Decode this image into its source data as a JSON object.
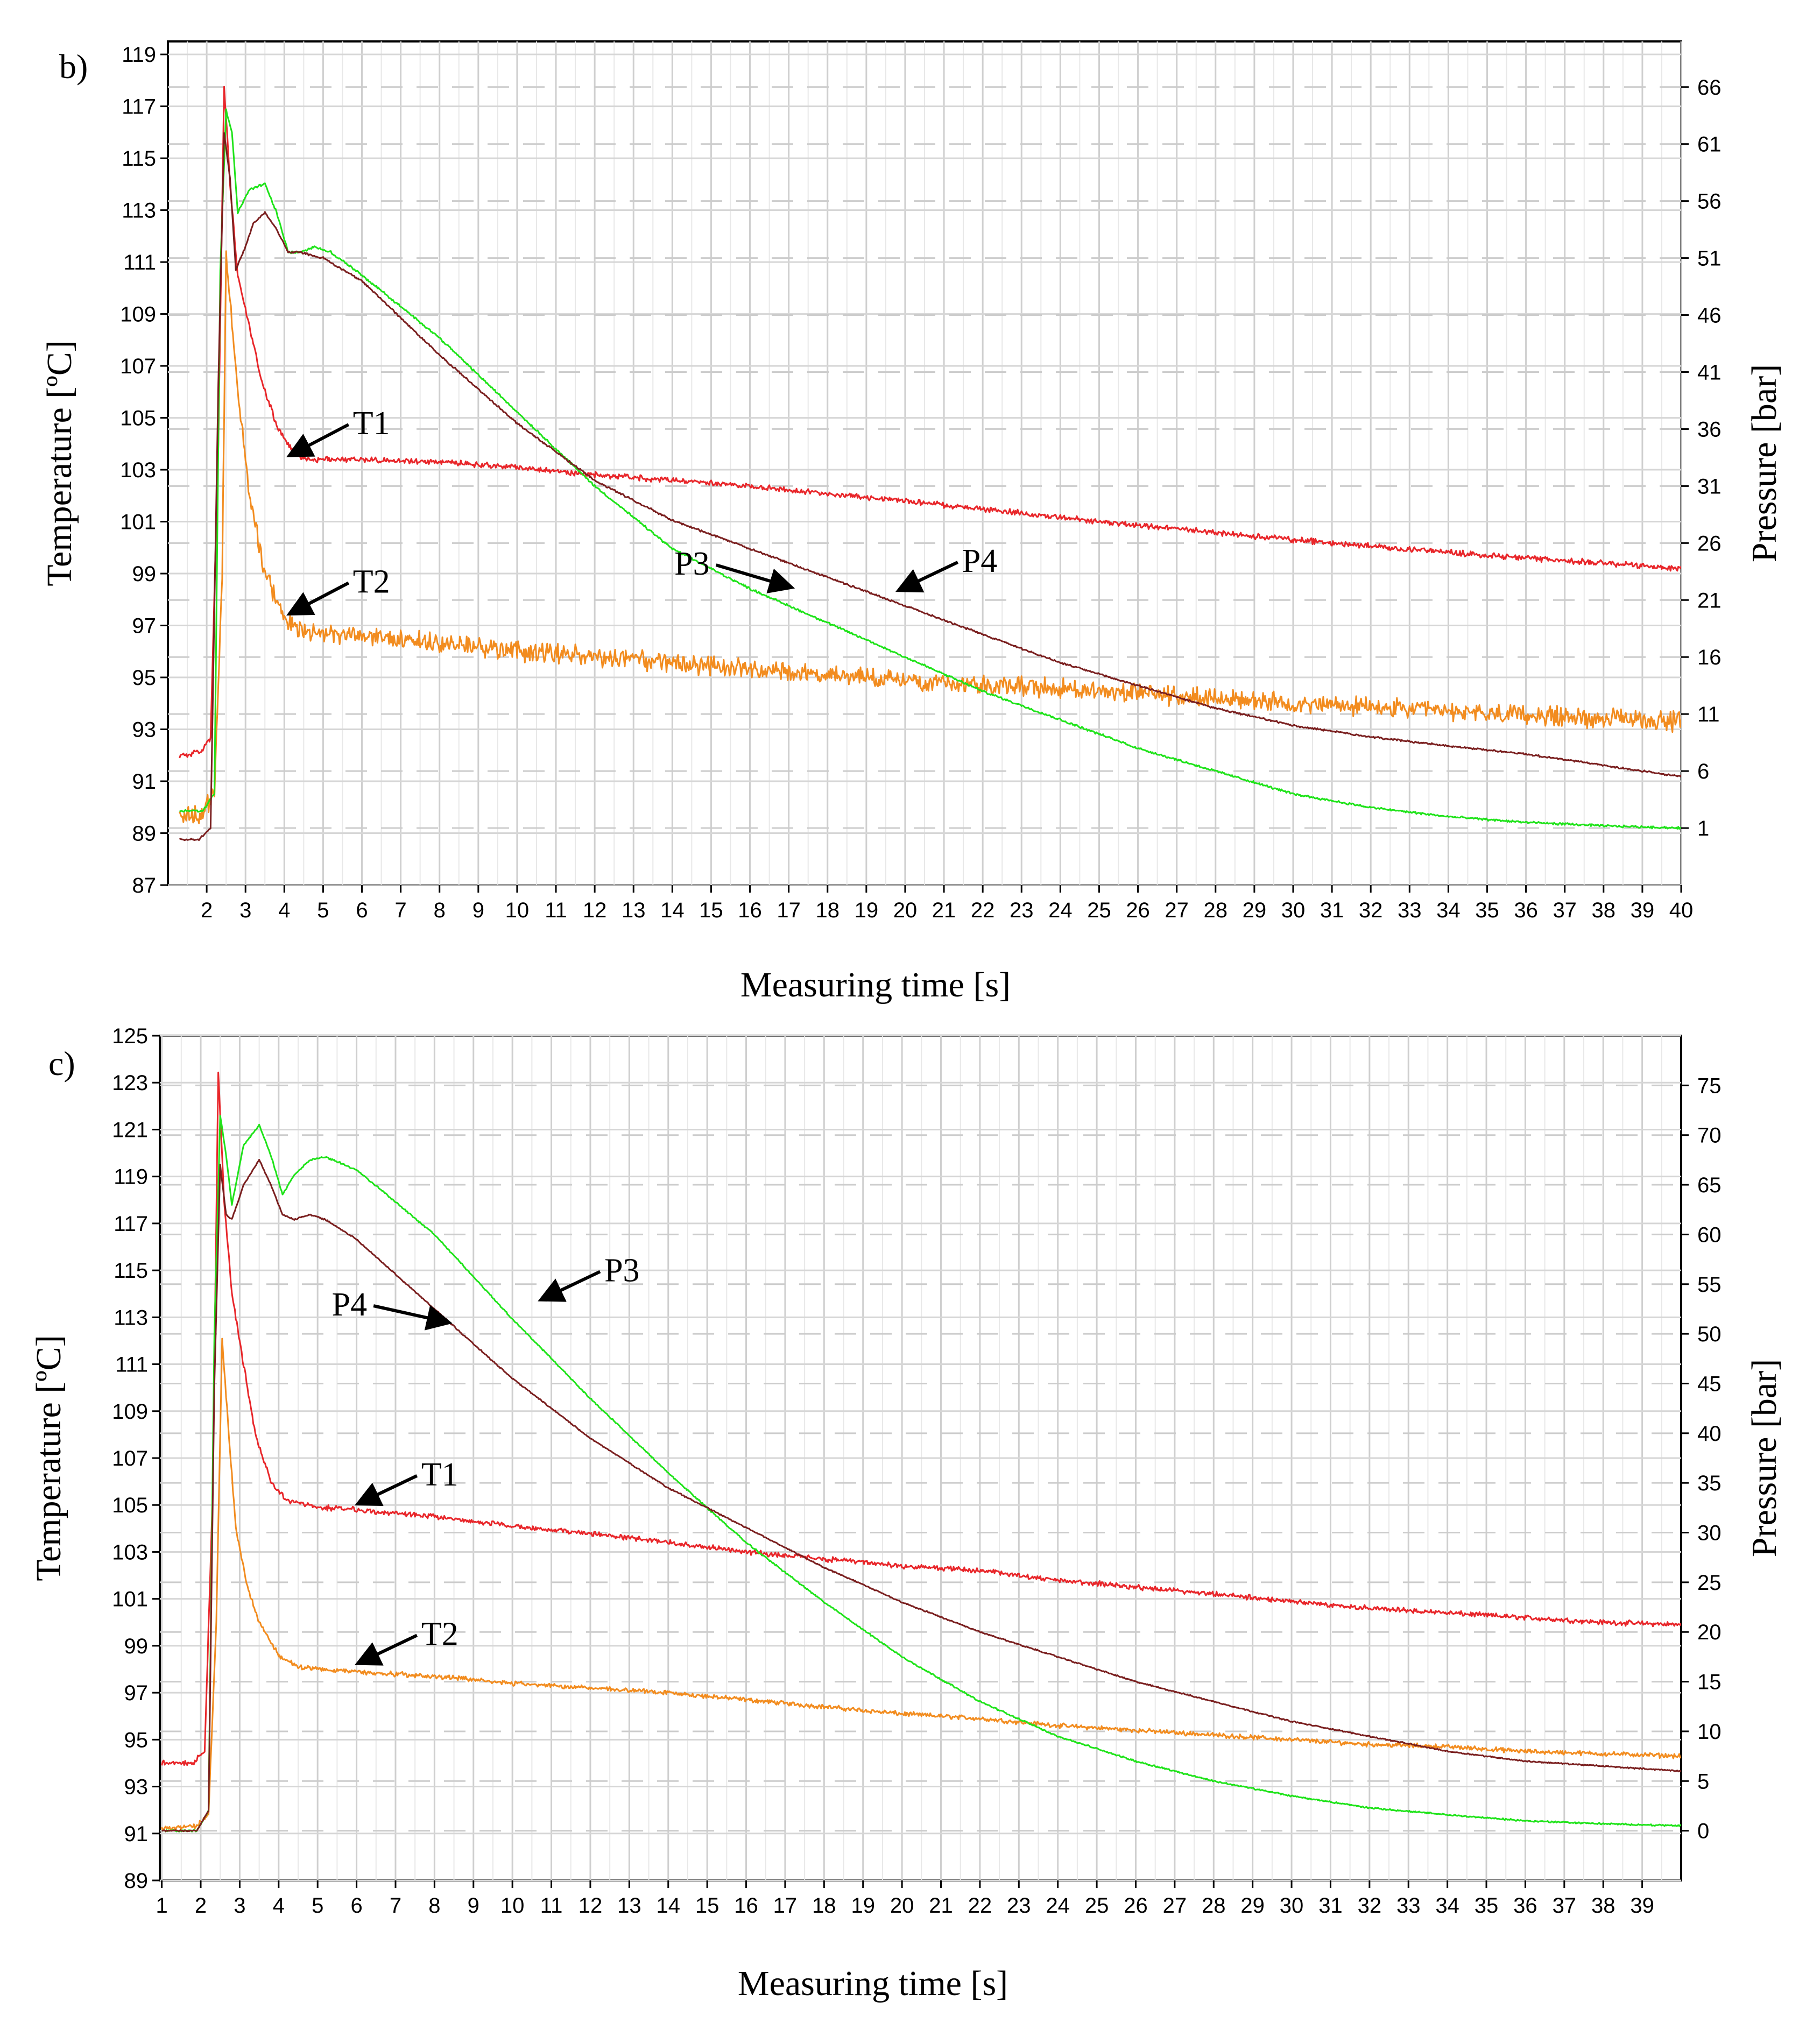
{
  "chart_data": [
    {
      "type": "line",
      "panel_label": "b)",
      "xlabel": "Measuring time [s]",
      "ylabel_left": "Temperature [ºC]",
      "ylabel_right": "Pressure [bar]",
      "xlim": [
        1,
        40
      ],
      "ylim_left": [
        87,
        119.5
      ],
      "ylim_right": [
        -4,
        70
      ],
      "x_ticks": [
        2,
        3,
        4,
        5,
        6,
        7,
        8,
        9,
        10,
        11,
        12,
        13,
        14,
        15,
        16,
        17,
        18,
        19,
        20,
        21,
        22,
        23,
        24,
        25,
        26,
        27,
        28,
        29,
        30,
        31,
        32,
        33,
        34,
        35,
        36,
        37,
        38,
        39,
        40
      ],
      "y_left_ticks": [
        87,
        89,
        91,
        93,
        95,
        97,
        99,
        101,
        103,
        105,
        107,
        109,
        111,
        113,
        115,
        117,
        119
      ],
      "y_right_ticks": [
        1,
        6,
        11,
        16,
        21,
        26,
        31,
        36,
        41,
        46,
        51,
        56,
        61,
        66
      ],
      "grid": true,
      "series": [
        {
          "name": "T1",
          "axis": "left",
          "color": "#e8262a",
          "noise": 0.13,
          "x": [
            1.3,
            1.8,
            2.1,
            2.3,
            2.45,
            2.6,
            2.8,
            3.1,
            3.4,
            3.8,
            4.2,
            4.6,
            5,
            6,
            8,
            10,
            12,
            15,
            20,
            25,
            30,
            35,
            40
          ],
          "y": [
            92,
            92.1,
            92.6,
            104,
            117.8,
            114,
            110.5,
            108.5,
            106.5,
            104.7,
            103.7,
            103.4,
            103.4,
            103.4,
            103.3,
            103.1,
            102.8,
            102.5,
            101.8,
            101,
            100.3,
            99.7,
            99.2
          ]
        },
        {
          "name": "T2",
          "axis": "left",
          "color": "#f28c1f",
          "noise": 0.45,
          "x": [
            1.3,
            1.9,
            2.2,
            2.4,
            2.5,
            2.6,
            2.8,
            3.1,
            3.5,
            4,
            4.5,
            5,
            6,
            8,
            10,
            12,
            15,
            20,
            25,
            30,
            35,
            40
          ],
          "y": [
            89.6,
            89.8,
            90.5,
            99,
            111.5,
            109.5,
            106,
            102,
            99,
            97.3,
            96.8,
            96.7,
            96.6,
            96.3,
            96,
            95.8,
            95.4,
            94.9,
            94.5,
            94,
            93.6,
            93.3
          ]
        },
        {
          "name": "P3",
          "axis": "right",
          "color": "#1fe31a",
          "noise": 0.12,
          "x": [
            1.3,
            1.9,
            2.2,
            2.35,
            2.5,
            2.65,
            2.8,
            3.1,
            3.5,
            3.8,
            4.1,
            4.4,
            4.8,
            5.2,
            6,
            8,
            10,
            12,
            14,
            16,
            18,
            20,
            22,
            24,
            26,
            28,
            30,
            32,
            34,
            36,
            38,
            40
          ],
          "y": [
            2.5,
            2.5,
            4,
            50,
            64,
            62,
            55,
            57,
            57.5,
            55,
            51.5,
            51.5,
            52,
            51.5,
            49.5,
            44,
            37.5,
            31,
            25.5,
            22,
            19,
            16,
            13,
            10.5,
            8,
            6,
            4,
            2.8,
            2,
            1.5,
            1.2,
            1
          ]
        },
        {
          "name": "P4",
          "axis": "right",
          "color": "#7a1f1f",
          "noise": 0.1,
          "x": [
            1.3,
            1.8,
            2.1,
            2.3,
            2.45,
            2.6,
            2.75,
            3,
            3.2,
            3.5,
            3.8,
            4.1,
            4.4,
            5,
            6,
            8,
            10,
            12,
            14,
            16,
            18,
            20,
            22,
            24,
            26,
            28,
            30,
            32,
            34,
            36,
            38,
            40
          ],
          "y": [
            0,
            0,
            1,
            40,
            62,
            58,
            50,
            52,
            54,
            55,
            53.5,
            51.5,
            51.5,
            51,
            49,
            42.5,
            36.5,
            31.5,
            28,
            25.5,
            23,
            20.5,
            18,
            15.5,
            13.5,
            11.5,
            10,
            9,
            8.2,
            7.5,
            6.5,
            5.5
          ]
        }
      ],
      "annotations": [
        {
          "label": "T1",
          "target": [
            4.2,
            103.6
          ]
        },
        {
          "label": "T2",
          "target": [
            4.2,
            97.5
          ]
        },
        {
          "label": "P3",
          "target": [
            17,
            98.5
          ]
        },
        {
          "label": "P4",
          "target": [
            19.9,
            98.4
          ]
        }
      ]
    },
    {
      "type": "line",
      "panel_label": "c)",
      "xlabel": "Measuring time [s]",
      "ylabel_left": "Temperature [ºC]",
      "ylabel_right": "Pressure [bar]",
      "xlim": [
        0.95,
        40
      ],
      "ylim_left": [
        89,
        125
      ],
      "ylim_right": [
        -5,
        80
      ],
      "x_ticks": [
        1,
        2,
        3,
        4,
        5,
        6,
        7,
        8,
        9,
        10,
        11,
        12,
        13,
        14,
        15,
        16,
        17,
        18,
        19,
        20,
        21,
        22,
        23,
        24,
        25,
        26,
        27,
        28,
        29,
        30,
        31,
        32,
        33,
        34,
        35,
        36,
        37,
        38,
        39
      ],
      "y_left_ticks": [
        89,
        91,
        93,
        95,
        97,
        99,
        101,
        103,
        105,
        107,
        109,
        111,
        113,
        115,
        117,
        119,
        121,
        123,
        125
      ],
      "y_right_ticks": [
        0,
        5,
        10,
        15,
        20,
        25,
        30,
        35,
        40,
        45,
        50,
        55,
        60,
        65,
        70,
        75
      ],
      "grid": true,
      "series": [
        {
          "name": "T1",
          "axis": "left",
          "color": "#e8262a",
          "noise": 0.13,
          "x": [
            1,
            1.8,
            2.1,
            2.3,
            2.45,
            2.6,
            2.8,
            3.1,
            3.4,
            3.8,
            4.2,
            5,
            6,
            8,
            10,
            12,
            14,
            16,
            18,
            20,
            22,
            24,
            26,
            28,
            30,
            32,
            34,
            36,
            38,
            40
          ],
          "y": [
            94,
            94,
            94.5,
            105,
            123.5,
            118,
            114,
            111,
            108,
            106,
            105.2,
            104.9,
            104.8,
            104.5,
            104.1,
            103.8,
            103.4,
            103,
            102.7,
            102.4,
            102.2,
            101.8,
            101.5,
            101.2,
            100.9,
            100.6,
            100.4,
            100.2,
            100,
            99.9
          ]
        },
        {
          "name": "T2",
          "axis": "left",
          "color": "#f28c1f",
          "noise": 0.12,
          "x": [
            1,
            1.9,
            2.2,
            2.4,
            2.55,
            2.7,
            2.9,
            3.2,
            3.5,
            4,
            4.5,
            5,
            6,
            8,
            10,
            12,
            14,
            16,
            18,
            20,
            22,
            24,
            26,
            28,
            30,
            32,
            34,
            36,
            38,
            40
          ],
          "y": [
            91.2,
            91.3,
            91.8,
            100,
            112,
            108.5,
            104,
            101.5,
            100,
            98.6,
            98.1,
            98,
            97.9,
            97.7,
            97.4,
            97.2,
            97,
            96.7,
            96.4,
            96.1,
            95.9,
            95.6,
            95.4,
            95.2,
            95,
            94.8,
            94.7,
            94.5,
            94.4,
            94.3
          ]
        },
        {
          "name": "P3",
          "axis": "right",
          "color": "#1fe31a",
          "noise": 0.1,
          "x": [
            1,
            1.9,
            2.2,
            2.35,
            2.5,
            2.65,
            2.8,
            3.1,
            3.5,
            3.8,
            4.1,
            4.4,
            4.8,
            5.2,
            6,
            8,
            10,
            12,
            14,
            16,
            18,
            20,
            22,
            24,
            26,
            28,
            30,
            32,
            34,
            36,
            38,
            40
          ],
          "y": [
            0,
            0,
            2,
            50,
            72,
            68,
            63,
            69,
            71,
            68,
            64,
            66,
            67.5,
            67.8,
            66.5,
            60,
            51.5,
            43.5,
            36,
            29,
            23,
            17.5,
            13,
            9.5,
            7,
            5,
            3.5,
            2.3,
            1.6,
            1,
            0.7,
            0.5
          ]
        },
        {
          "name": "P4",
          "axis": "right",
          "color": "#7a1f1f",
          "noise": 0.08,
          "x": [
            1,
            1.9,
            2.2,
            2.35,
            2.5,
            2.65,
            2.8,
            3.1,
            3.5,
            3.8,
            4.1,
            4.4,
            4.8,
            5.2,
            6,
            8,
            10,
            12,
            14,
            16,
            18,
            20,
            22,
            24,
            26,
            28,
            30,
            32,
            34,
            36,
            38,
            40
          ],
          "y": [
            0,
            0,
            2,
            45,
            67,
            62,
            61.5,
            65,
            67.5,
            65,
            62,
            61.5,
            62,
            61.5,
            59.5,
            52.5,
            45.5,
            39.5,
            34.5,
            30.5,
            26.5,
            23,
            20,
            17.5,
            15,
            13,
            11,
            9.5,
            8,
            7,
            6.5,
            6
          ]
        }
      ],
      "annotations": [
        {
          "label": "P3",
          "target": [
            10.8,
            113.8
          ]
        },
        {
          "label": "P4",
          "target": [
            8.3,
            112.8
          ]
        },
        {
          "label": "T1",
          "target": [
            6.1,
            105.1
          ]
        },
        {
          "label": "T2",
          "target": [
            6.1,
            98.3
          ]
        }
      ]
    }
  ]
}
